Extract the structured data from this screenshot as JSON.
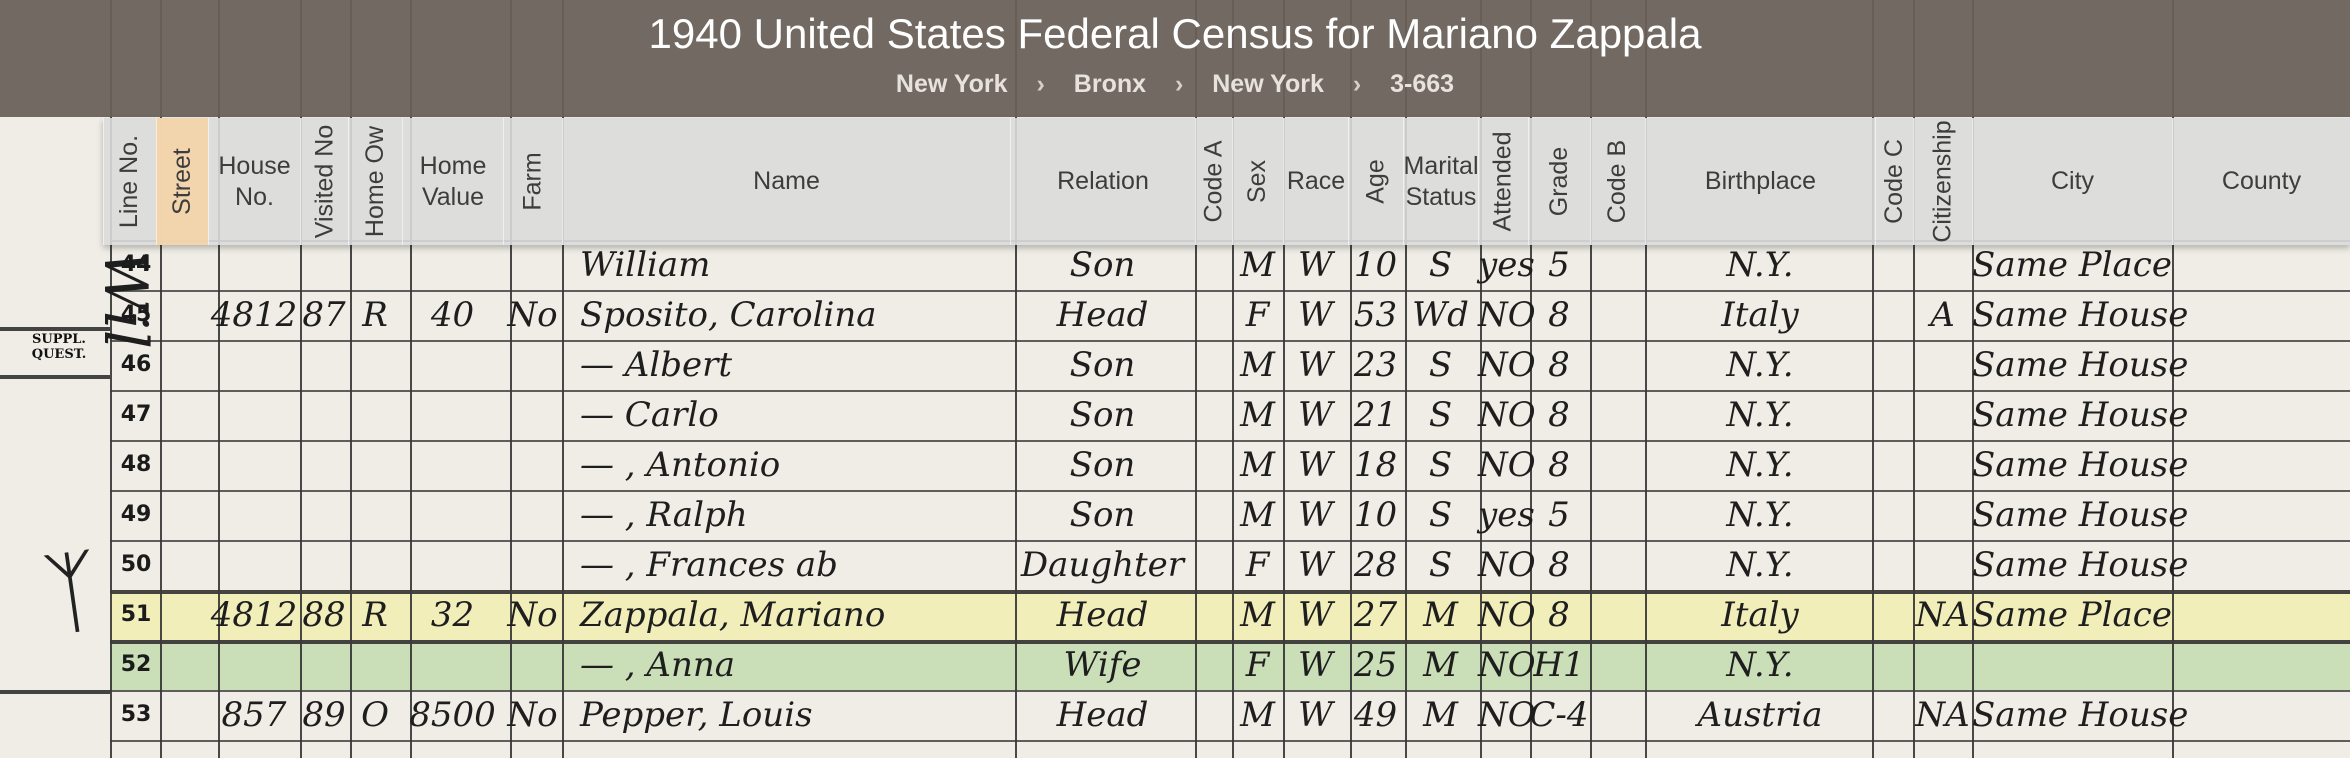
{
  "title": "1940 United States Federal Census for Mariano Zappala",
  "breadcrumb": [
    "New York",
    "Bronx",
    "New York",
    "3-663"
  ],
  "breadcrumb_separator": "›",
  "columns": [
    {
      "label": "Line No.",
      "orientation": "vertical",
      "selected": false
    },
    {
      "label": "Street",
      "orientation": "vertical",
      "selected": true
    },
    {
      "label": "House No.",
      "orientation": "horizontal",
      "selected": false
    },
    {
      "label": "Visited No",
      "orientation": "vertical",
      "selected": false
    },
    {
      "label": "Home Ow",
      "orientation": "vertical",
      "selected": false
    },
    {
      "label": "Home Value",
      "orientation": "horizontal",
      "selected": false
    },
    {
      "label": "Farm",
      "orientation": "vertical",
      "selected": false
    },
    {
      "label": "Name",
      "orientation": "horizontal",
      "selected": false
    },
    {
      "label": "Relation",
      "orientation": "horizontal",
      "selected": false
    },
    {
      "label": "Code A",
      "orientation": "vertical",
      "selected": false
    },
    {
      "label": "Sex",
      "orientation": "vertical",
      "selected": false
    },
    {
      "label": "Race",
      "orientation": "horizontal",
      "selected": false
    },
    {
      "label": "Age",
      "orientation": "vertical",
      "selected": false
    },
    {
      "label": "Marital Status",
      "orientation": "horizontal",
      "selected": false
    },
    {
      "label": "Attended",
      "orientation": "vertical",
      "selected": false
    },
    {
      "label": "Grade",
      "orientation": "vertical",
      "selected": false
    },
    {
      "label": "Code B",
      "orientation": "vertical",
      "selected": false
    },
    {
      "label": "Birthplace",
      "orientation": "horizontal",
      "selected": false
    },
    {
      "label": "Code C",
      "orientation": "vertical",
      "selected": false
    },
    {
      "label": "Citizenship",
      "orientation": "vertical",
      "selected": false
    },
    {
      "label": "City",
      "orientation": "horizontal",
      "selected": false
    },
    {
      "label": "County",
      "orientation": "horizontal",
      "selected": false
    }
  ],
  "margin_note": "SUPPL. QUEST.",
  "street_handwriting": "Wil",
  "rows": [
    {
      "line": "44",
      "house": "",
      "visited": "",
      "owned": "",
      "value": "",
      "farm": "",
      "name": "William",
      "relation": "Son",
      "sex": "M",
      "race": "W",
      "age": "10",
      "marital": "S",
      "attended": "yes",
      "grade": "5",
      "birthplace": "N.Y.",
      "citizenship": "",
      "city": "Same Place",
      "highlight": "none"
    },
    {
      "line": "45",
      "house": "4812",
      "visited": "87",
      "owned": "R",
      "value": "40",
      "farm": "No",
      "name": "Sposito, Carolina",
      "relation": "Head",
      "sex": "F",
      "race": "W",
      "age": "53",
      "marital": "Wd",
      "attended": "NO",
      "grade": "8",
      "birthplace": "Italy",
      "citizenship": "A",
      "city": "Same House",
      "highlight": "none"
    },
    {
      "line": "46",
      "house": "",
      "visited": "",
      "owned": "",
      "value": "",
      "farm": "",
      "name": "— Albert",
      "relation": "Son",
      "sex": "M",
      "race": "W",
      "age": "23",
      "marital": "S",
      "attended": "NO",
      "grade": "8",
      "birthplace": "N.Y.",
      "citizenship": "",
      "city": "Same House",
      "highlight": "none"
    },
    {
      "line": "47",
      "house": "",
      "visited": "",
      "owned": "",
      "value": "",
      "farm": "",
      "name": "— Carlo",
      "relation": "Son",
      "sex": "M",
      "race": "W",
      "age": "21",
      "marital": "S",
      "attended": "NO",
      "grade": "8",
      "birthplace": "N.Y.",
      "citizenship": "",
      "city": "Same House",
      "highlight": "none"
    },
    {
      "line": "48",
      "house": "",
      "visited": "",
      "owned": "",
      "value": "",
      "farm": "",
      "name": "— , Antonio",
      "relation": "Son",
      "sex": "M",
      "race": "W",
      "age": "18",
      "marital": "S",
      "attended": "NO",
      "grade": "8",
      "birthplace": "N.Y.",
      "citizenship": "",
      "city": "Same House",
      "highlight": "none"
    },
    {
      "line": "49",
      "house": "",
      "visited": "",
      "owned": "",
      "value": "",
      "farm": "",
      "name": "— , Ralph",
      "relation": "Son",
      "sex": "M",
      "race": "W",
      "age": "10",
      "marital": "S",
      "attended": "yes",
      "grade": "5",
      "birthplace": "N.Y.",
      "citizenship": "",
      "city": "Same House",
      "highlight": "none"
    },
    {
      "line": "50",
      "house": "",
      "visited": "",
      "owned": "",
      "value": "",
      "farm": "",
      "name": "— , Frances ab",
      "relation": "Daughter",
      "sex": "F",
      "race": "W",
      "age": "28",
      "marital": "S",
      "attended": "NO",
      "grade": "8",
      "birthplace": "N.Y.",
      "citizenship": "",
      "city": "Same House",
      "highlight": "none"
    },
    {
      "line": "51",
      "house": "4812",
      "visited": "88",
      "owned": "R",
      "value": "32",
      "farm": "No",
      "name": "Zappala, Mariano",
      "relation": "Head",
      "sex": "M",
      "race": "W",
      "age": "27",
      "marital": "M",
      "attended": "NO",
      "grade": "8",
      "birthplace": "Italy",
      "citizenship": "NA",
      "city": "Same Place",
      "highlight": "yellow"
    },
    {
      "line": "52",
      "house": "",
      "visited": "",
      "owned": "",
      "value": "",
      "farm": "",
      "name": "— , Anna",
      "relation": "Wife",
      "sex": "F",
      "race": "W",
      "age": "25",
      "marital": "M",
      "attended": "NO",
      "grade": "H1",
      "birthplace": "N.Y.",
      "citizenship": "",
      "city": "",
      "highlight": "green"
    },
    {
      "line": "53",
      "house": "857",
      "visited": "89",
      "owned": "O",
      "value": "8500",
      "farm": "No",
      "name": "Pepper, Louis",
      "relation": "Head",
      "sex": "M",
      "race": "W",
      "age": "49",
      "marital": "M",
      "attended": "NO",
      "grade": "C-4",
      "birthplace": "Austria",
      "citizenship": "NA",
      "city": "Same House",
      "highlight": "none"
    }
  ]
}
